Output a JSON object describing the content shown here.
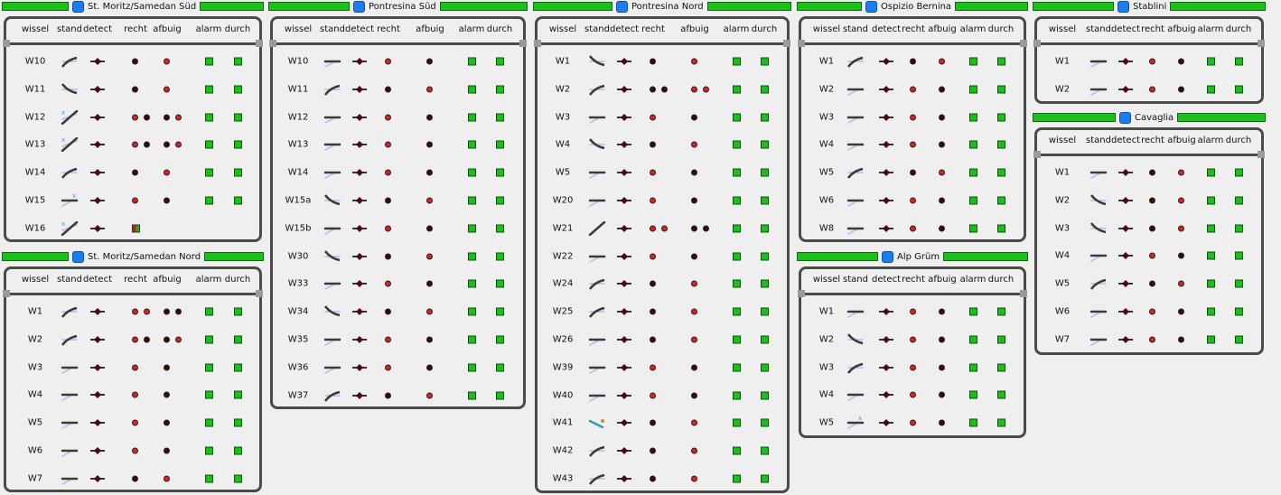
{
  "headers": [
    "wissel",
    "stand",
    "detect",
    "recht",
    "afbuig",
    "alarm",
    "durch"
  ],
  "stations": [
    {
      "name": "St. Moritz/Samedan Süd",
      "rows": [
        {
          "label": "W10",
          "stand": "div-up",
          "recht": [
            "dark"
          ],
          "afbuig": [
            "red"
          ]
        },
        {
          "label": "W11",
          "stand": "div-down",
          "recht": [
            "dark"
          ],
          "afbuig": [
            "red"
          ]
        },
        {
          "label": "W12",
          "stand": "conflict",
          "recht": [
            "red",
            "dark"
          ],
          "afbuig": [
            "dark",
            "red"
          ]
        },
        {
          "label": "W13",
          "stand": "conflict",
          "recht": [
            "red",
            "dark"
          ],
          "afbuig": [
            "dark",
            "red"
          ]
        },
        {
          "label": "W14",
          "stand": "div-up",
          "recht": [
            "dark"
          ],
          "afbuig": [
            "red"
          ]
        },
        {
          "label": "W15",
          "stand": "straight-x",
          "recht": [
            "red"
          ],
          "afbuig": [
            "dark"
          ]
        },
        {
          "label": "W16",
          "stand": "conflict",
          "recht": [
            "red-square"
          ],
          "afbuig": [],
          "alarm": false,
          "durch": false
        }
      ]
    },
    {
      "name": "St. Moritz/Samedan Nord",
      "rows": [
        {
          "label": "W1",
          "stand": "div-up",
          "recht": [
            "red",
            "red"
          ],
          "afbuig": [
            "dark",
            "dark"
          ]
        },
        {
          "label": "W2",
          "stand": "div-up",
          "recht": [
            "red",
            "dark"
          ],
          "afbuig": [
            "dark",
            "red"
          ]
        },
        {
          "label": "W3",
          "stand": "straight",
          "recht": [
            "red"
          ],
          "afbuig": [
            "dark"
          ]
        },
        {
          "label": "W4",
          "stand": "straight",
          "recht": [
            "red"
          ],
          "afbuig": [
            "dark"
          ]
        },
        {
          "label": "W5",
          "stand": "straight",
          "recht": [
            "red"
          ],
          "afbuig": [
            "dark"
          ]
        },
        {
          "label": "W6",
          "stand": "straight",
          "recht": [
            "red"
          ],
          "afbuig": [
            "dark"
          ]
        },
        {
          "label": "W7",
          "stand": "straight",
          "recht": [
            "dark"
          ],
          "afbuig": [
            "red"
          ]
        }
      ]
    },
    {
      "name": "Pontresina Süd",
      "rows": [
        {
          "label": "W10",
          "stand": "straight",
          "recht": [
            "red"
          ],
          "afbuig": [
            "dark"
          ]
        },
        {
          "label": "W11",
          "stand": "div-up",
          "recht": [
            "dark"
          ],
          "afbuig": [
            "red"
          ]
        },
        {
          "label": "W12",
          "stand": "straight",
          "recht": [
            "red"
          ],
          "afbuig": [
            "dark"
          ]
        },
        {
          "label": "W13",
          "stand": "straight",
          "recht": [
            "red"
          ],
          "afbuig": [
            "dark"
          ]
        },
        {
          "label": "W14",
          "stand": "straight",
          "recht": [
            "red"
          ],
          "afbuig": [
            "dark"
          ]
        },
        {
          "label": "W15a",
          "stand": "div-down",
          "recht": [
            "dark"
          ],
          "afbuig": [
            "red"
          ]
        },
        {
          "label": "W15b",
          "stand": "straight",
          "recht": [
            "red"
          ],
          "afbuig": [
            "dark"
          ]
        },
        {
          "label": "W30",
          "stand": "div-down",
          "recht": [
            "dark"
          ],
          "afbuig": [
            "red"
          ]
        },
        {
          "label": "W33",
          "stand": "straight",
          "recht": [
            "red"
          ],
          "afbuig": [
            "dark"
          ]
        },
        {
          "label": "W34",
          "stand": "div-down",
          "recht": [
            "dark"
          ],
          "afbuig": [
            "red"
          ]
        },
        {
          "label": "W35",
          "stand": "straight",
          "recht": [
            "red"
          ],
          "afbuig": [
            "dark"
          ]
        },
        {
          "label": "W36",
          "stand": "straight",
          "recht": [
            "red"
          ],
          "afbuig": [
            "dark"
          ]
        },
        {
          "label": "W37",
          "stand": "div-up",
          "recht": [
            "dark"
          ],
          "afbuig": [
            "red"
          ]
        }
      ]
    },
    {
      "name": "Pontresina Nord",
      "rows": [
        {
          "label": "W1",
          "stand": "div-down",
          "recht": [
            "dark"
          ],
          "afbuig": [
            "red"
          ]
        },
        {
          "label": "W2",
          "stand": "div-up",
          "recht": [
            "dark",
            "dark"
          ],
          "afbuig": [
            "red",
            "red"
          ]
        },
        {
          "label": "W3",
          "stand": "straight",
          "recht": [
            "red"
          ],
          "afbuig": [
            "dark"
          ]
        },
        {
          "label": "W4",
          "stand": "div-down",
          "recht": [
            "dark"
          ],
          "afbuig": [
            "red"
          ]
        },
        {
          "label": "W5",
          "stand": "straight",
          "recht": [
            "red"
          ],
          "afbuig": [
            "dark"
          ]
        },
        {
          "label": "W20",
          "stand": "straight",
          "recht": [
            "red"
          ],
          "afbuig": [
            "dark"
          ]
        },
        {
          "label": "W21",
          "stand": "diag",
          "recht": [
            "red",
            "red"
          ],
          "afbuig": [
            "dark",
            "dark"
          ]
        },
        {
          "label": "W22",
          "stand": "straight",
          "recht": [
            "red"
          ],
          "afbuig": [
            "dark"
          ]
        },
        {
          "label": "W24",
          "stand": "div-up",
          "recht": [
            "dark"
          ],
          "afbuig": [
            "red"
          ]
        },
        {
          "label": "W25",
          "stand": "div-up",
          "recht": [
            "dark"
          ],
          "afbuig": [
            "red"
          ]
        },
        {
          "label": "W26",
          "stand": "straight",
          "recht": [
            "dark"
          ],
          "afbuig": [
            "red"
          ]
        },
        {
          "label": "W39",
          "stand": "straight",
          "recht": [
            "red"
          ],
          "afbuig": [
            "dark"
          ]
        },
        {
          "label": "W40",
          "stand": "straight",
          "recht": [
            "red"
          ],
          "afbuig": [
            "dark"
          ]
        },
        {
          "label": "W41",
          "stand": "cyan",
          "recht": [
            "dark"
          ],
          "afbuig": [
            "red"
          ]
        },
        {
          "label": "W42",
          "stand": "div-up",
          "recht": [
            "dark"
          ],
          "afbuig": [
            "red"
          ]
        },
        {
          "label": "W43",
          "stand": "div-up",
          "recht": [
            "dark"
          ],
          "afbuig": [
            "red"
          ]
        }
      ]
    },
    {
      "name": "Ospizio Bernina",
      "rows": [
        {
          "label": "W1",
          "stand": "div-up",
          "recht": [
            "dark"
          ],
          "afbuig": [
            "red"
          ]
        },
        {
          "label": "W2",
          "stand": "straight",
          "recht": [
            "red"
          ],
          "afbuig": [
            "dark"
          ]
        },
        {
          "label": "W3",
          "stand": "straight",
          "recht": [
            "red"
          ],
          "afbuig": [
            "dark"
          ]
        },
        {
          "label": "W4",
          "stand": "straight",
          "recht": [
            "red"
          ],
          "afbuig": [
            "dark"
          ]
        },
        {
          "label": "W5",
          "stand": "div-up",
          "recht": [
            "dark"
          ],
          "afbuig": [
            "red"
          ]
        },
        {
          "label": "W6",
          "stand": "straight",
          "recht": [
            "red"
          ],
          "afbuig": [
            "dark"
          ]
        },
        {
          "label": "W8",
          "stand": "straight",
          "recht": [
            "red"
          ],
          "afbuig": [
            "dark"
          ]
        }
      ]
    },
    {
      "name": "Alp Grüm",
      "rows": [
        {
          "label": "W1",
          "stand": "straight",
          "recht": [
            "red"
          ],
          "afbuig": [
            "dark"
          ]
        },
        {
          "label": "W2",
          "stand": "div-down",
          "recht": [
            "red"
          ],
          "afbuig": [
            "dark"
          ]
        },
        {
          "label": "W3",
          "stand": "div-up",
          "recht": [
            "red"
          ],
          "afbuig": [
            "dark"
          ]
        },
        {
          "label": "W4",
          "stand": "straight",
          "recht": [
            "red"
          ],
          "afbuig": [
            "dark"
          ]
        },
        {
          "label": "W5",
          "stand": "straight-x",
          "recht": [
            "red"
          ],
          "afbuig": [
            "dark"
          ]
        }
      ]
    },
    {
      "name": "Stablini",
      "rows": [
        {
          "label": "W1",
          "stand": "straight",
          "recht": [
            "red"
          ],
          "afbuig": [
            "dark"
          ]
        },
        {
          "label": "W2",
          "stand": "straight",
          "recht": [
            "red"
          ],
          "afbuig": [
            "dark"
          ]
        }
      ]
    },
    {
      "name": "Cavaglia",
      "rows": [
        {
          "label": "W1",
          "stand": "straight",
          "recht": [
            "dark"
          ],
          "afbuig": [
            "red"
          ]
        },
        {
          "label": "W2",
          "stand": "div-down",
          "recht": [
            "dark"
          ],
          "afbuig": [
            "red"
          ]
        },
        {
          "label": "W3",
          "stand": "div-down",
          "recht": [
            "dark"
          ],
          "afbuig": [
            "red"
          ]
        },
        {
          "label": "W4",
          "stand": "straight",
          "recht": [
            "red"
          ],
          "afbuig": [
            "dark"
          ]
        },
        {
          "label": "W5",
          "stand": "div-up",
          "recht": [
            "dark"
          ],
          "afbuig": [
            "red"
          ]
        },
        {
          "label": "W6",
          "stand": "straight",
          "recht": [
            "red"
          ],
          "afbuig": [
            "dark"
          ]
        },
        {
          "label": "W7",
          "stand": "straight",
          "recht": [
            "red"
          ],
          "afbuig": [
            "dark"
          ]
        }
      ]
    }
  ]
}
